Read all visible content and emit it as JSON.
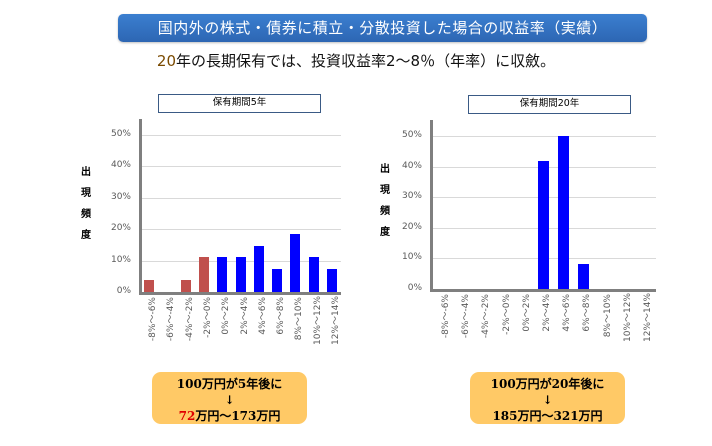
{
  "header": {
    "title": "国内外の株式・債券に積立・分散投資した場合の収益率（実績）",
    "subtitle_num": "20",
    "subtitle_rest": "年の長期保有では、投資収益率2～8％（年率）に収斂。"
  },
  "colors": {
    "banner": "#2d66b3",
    "negative_bar": "#c0504d",
    "positive_bar": "#0000ff",
    "callout_bg": "#ffc966",
    "highlight_red": "#e00000"
  },
  "y_axis_label": [
    "出",
    "現",
    "頻",
    "度"
  ],
  "y_ticks": [
    "50%",
    "40%",
    "30%",
    "20%",
    "10%",
    "0%"
  ],
  "chart_data": [
    {
      "type": "bar",
      "title": "保有期間5年",
      "xlabel": "",
      "ylabel": "出現頻度",
      "ylim": [
        0,
        50
      ],
      "grid": true,
      "categories": [
        "-8%～-6%",
        "-6%～-4%",
        "-4%～-2%",
        "-2%～0%",
        "0%～2%",
        "2%～4%",
        "4%～6%",
        "6%～8%",
        "8%～10%",
        "10%～12%",
        "12%～14%"
      ],
      "values": [
        3.7,
        0,
        3.7,
        11.1,
        11.1,
        11.1,
        14.8,
        7.4,
        18.5,
        11.1,
        7.4
      ],
      "bar_colors": [
        "#c0504d",
        "#c0504d",
        "#c0504d",
        "#c0504d",
        "#0000ff",
        "#0000ff",
        "#0000ff",
        "#0000ff",
        "#0000ff",
        "#0000ff",
        "#0000ff"
      ]
    },
    {
      "type": "bar",
      "title": "保有期間20年",
      "xlabel": "",
      "ylabel": "出現頻度",
      "ylim": [
        0,
        50
      ],
      "grid": true,
      "categories": [
        "-8%～-6%",
        "-6%～-4%",
        "-4%～-2%",
        "-2%～0%",
        "0%～2%",
        "2%～4%",
        "4%～6%",
        "6%～8%",
        "8%～10%",
        "10%～12%",
        "12%～14%"
      ],
      "values": [
        0,
        0,
        0,
        0,
        0,
        41.7,
        50.0,
        8.3,
        0,
        0,
        0
      ],
      "bar_colors": [
        "#c0504d",
        "#c0504d",
        "#c0504d",
        "#c0504d",
        "#0000ff",
        "#0000ff",
        "#0000ff",
        "#0000ff",
        "#0000ff",
        "#0000ff",
        "#0000ff"
      ]
    }
  ],
  "callouts": [
    {
      "line1": "100万円が5年後に",
      "arrow": "↓",
      "low": "72",
      "low_unit": "万円～173万円"
    },
    {
      "line1": "100万円が20年後に",
      "arrow": "↓",
      "low": "185",
      "low_unit": "万円～321万円"
    }
  ]
}
